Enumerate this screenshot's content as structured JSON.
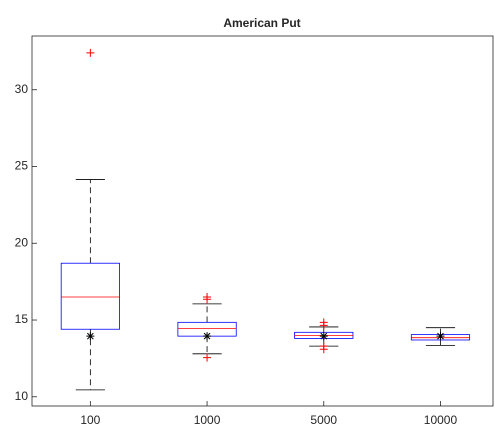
{
  "chart_data": {
    "type": "box",
    "title": "American Put",
    "categories": [
      "100",
      "1000",
      "5000",
      "10000"
    ],
    "boxes": [
      {
        "whisker_low": 10.45,
        "q1": 14.4,
        "median": 16.5,
        "q3": 18.7,
        "whisker_high": 24.15,
        "mean": 13.95,
        "outliers": [
          32.4
        ]
      },
      {
        "whisker_low": 12.8,
        "q1": 13.95,
        "median": 14.45,
        "q3": 14.85,
        "whisker_high": 16.05,
        "mean": 13.95,
        "outliers": [
          16.5,
          16.35,
          12.55
        ]
      },
      {
        "whisker_low": 13.3,
        "q1": 13.8,
        "median": 14.0,
        "q3": 14.2,
        "whisker_high": 14.55,
        "mean": 13.95,
        "outliers": [
          14.85,
          14.65,
          13.1,
          13.3
        ]
      },
      {
        "whisker_low": 13.35,
        "q1": 13.7,
        "median": 13.85,
        "q3": 14.05,
        "whisker_high": 14.5,
        "mean": 13.95,
        "outliers": []
      }
    ],
    "box_color": "#0000ff",
    "median_color": "#ff0000",
    "outlier_color": "#ff0000",
    "whisker_color": "#000000",
    "mean_color": "#000000",
    "ylim": [
      9.4,
      33.5
    ],
    "yticks": [
      10,
      15,
      20,
      25,
      30
    ],
    "grid": false
  }
}
